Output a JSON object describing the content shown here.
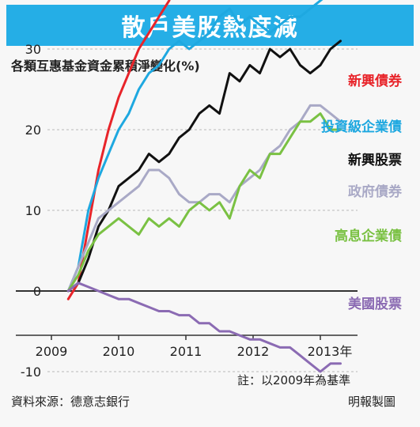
{
  "title": "散戶美股熱度減",
  "subtitle": "各類互惠基金資金累積淨變化(%)",
  "note": "註：以2009年為基準",
  "source": "資料來源：德意志銀行",
  "credit": "明報製圖",
  "chart_data": {
    "type": "line",
    "ylim": [
      -13,
      53
    ],
    "yticks": [
      -10,
      0,
      10,
      20,
      30,
      40,
      50
    ],
    "xlim": [
      2009.0,
      2013.8
    ],
    "xticks": [
      2009,
      2010,
      2011,
      2012,
      2013
    ],
    "xtick_labels": [
      "2009",
      "2010",
      "2011",
      "2012",
      "2013年"
    ],
    "grid": true,
    "legend": "labels at line ends",
    "series": [
      {
        "name": "新興債券",
        "color": "#e8242a",
        "points": [
          [
            2009.25,
            -1
          ],
          [
            2009.4,
            1
          ],
          [
            2009.55,
            8
          ],
          [
            2009.7,
            15
          ],
          [
            2009.85,
            20
          ],
          [
            2010.0,
            24
          ],
          [
            2010.15,
            27
          ],
          [
            2010.3,
            30
          ],
          [
            2010.45,
            32
          ],
          [
            2010.6,
            34
          ],
          [
            2010.75,
            36
          ],
          [
            2010.9,
            39
          ],
          [
            2011.05,
            40
          ],
          [
            2011.2,
            41
          ],
          [
            2011.35,
            42
          ],
          [
            2011.5,
            44
          ],
          [
            2011.65,
            46
          ],
          [
            2011.8,
            47
          ],
          [
            2011.95,
            46
          ],
          [
            2012.1,
            48
          ],
          [
            2012.25,
            46
          ],
          [
            2012.4,
            48
          ],
          [
            2012.55,
            49
          ],
          [
            2012.7,
            49
          ],
          [
            2012.85,
            48
          ],
          [
            2013.0,
            50
          ],
          [
            2013.15,
            51
          ],
          [
            2013.3,
            50
          ]
        ]
      },
      {
        "name": "投資級企業債",
        "color": "#1ea8e0",
        "points": [
          [
            2009.25,
            0
          ],
          [
            2009.4,
            3
          ],
          [
            2009.55,
            10
          ],
          [
            2009.7,
            14
          ],
          [
            2009.85,
            17
          ],
          [
            2010.0,
            20
          ],
          [
            2010.15,
            22
          ],
          [
            2010.3,
            25
          ],
          [
            2010.45,
            27
          ],
          [
            2010.6,
            28
          ],
          [
            2010.75,
            30
          ],
          [
            2010.9,
            31
          ],
          [
            2011.05,
            30
          ],
          [
            2011.2,
            31
          ],
          [
            2011.35,
            32
          ],
          [
            2011.5,
            34
          ],
          [
            2011.65,
            35
          ],
          [
            2011.8,
            33
          ],
          [
            2011.95,
            34
          ],
          [
            2012.1,
            33
          ],
          [
            2012.25,
            32
          ],
          [
            2012.4,
            33
          ],
          [
            2012.55,
            34
          ],
          [
            2012.7,
            34
          ],
          [
            2012.85,
            35
          ],
          [
            2013.0,
            36
          ],
          [
            2013.15,
            37
          ],
          [
            2013.3,
            39
          ]
        ]
      },
      {
        "name": "新興股票",
        "color": "#111111",
        "points": [
          [
            2009.25,
            0
          ],
          [
            2009.4,
            1
          ],
          [
            2009.55,
            4
          ],
          [
            2009.7,
            8
          ],
          [
            2009.85,
            10
          ],
          [
            2010.0,
            13
          ],
          [
            2010.15,
            14
          ],
          [
            2010.3,
            15
          ],
          [
            2010.45,
            17
          ],
          [
            2010.6,
            16
          ],
          [
            2010.75,
            17
          ],
          [
            2010.9,
            19
          ],
          [
            2011.05,
            20
          ],
          [
            2011.2,
            22
          ],
          [
            2011.35,
            23
          ],
          [
            2011.5,
            22
          ],
          [
            2011.65,
            27
          ],
          [
            2011.8,
            26
          ],
          [
            2011.95,
            28
          ],
          [
            2012.1,
            27
          ],
          [
            2012.25,
            30
          ],
          [
            2012.4,
            29
          ],
          [
            2012.55,
            30
          ],
          [
            2012.7,
            28
          ],
          [
            2012.85,
            27
          ],
          [
            2013.0,
            28
          ],
          [
            2013.15,
            30
          ],
          [
            2013.3,
            31
          ]
        ]
      },
      {
        "name": "政府債券",
        "color": "#a9a9c6",
        "points": [
          [
            2009.25,
            0
          ],
          [
            2009.4,
            3
          ],
          [
            2009.55,
            6
          ],
          [
            2009.7,
            9
          ],
          [
            2009.85,
            10
          ],
          [
            2010.0,
            11
          ],
          [
            2010.15,
            12
          ],
          [
            2010.3,
            13
          ],
          [
            2010.45,
            15
          ],
          [
            2010.6,
            15
          ],
          [
            2010.75,
            14
          ],
          [
            2010.9,
            12
          ],
          [
            2011.05,
            11
          ],
          [
            2011.2,
            11
          ],
          [
            2011.35,
            12
          ],
          [
            2011.5,
            12
          ],
          [
            2011.65,
            11
          ],
          [
            2011.8,
            13
          ],
          [
            2011.95,
            14
          ],
          [
            2012.1,
            15
          ],
          [
            2012.25,
            17
          ],
          [
            2012.4,
            18
          ],
          [
            2012.55,
            20
          ],
          [
            2012.7,
            21
          ],
          [
            2012.85,
            23
          ],
          [
            2013.0,
            23
          ],
          [
            2013.15,
            22
          ],
          [
            2013.3,
            21
          ]
        ]
      },
      {
        "name": "高息企業債",
        "color": "#7ac143",
        "points": [
          [
            2009.25,
            0
          ],
          [
            2009.4,
            2
          ],
          [
            2009.55,
            5
          ],
          [
            2009.7,
            7
          ],
          [
            2009.85,
            8
          ],
          [
            2010.0,
            9
          ],
          [
            2010.15,
            8
          ],
          [
            2010.3,
            7
          ],
          [
            2010.45,
            9
          ],
          [
            2010.6,
            8
          ],
          [
            2010.75,
            9
          ],
          [
            2010.9,
            8
          ],
          [
            2011.05,
            10
          ],
          [
            2011.2,
            11
          ],
          [
            2011.35,
            10
          ],
          [
            2011.5,
            11
          ],
          [
            2011.65,
            9
          ],
          [
            2011.8,
            13
          ],
          [
            2011.95,
            15
          ],
          [
            2012.1,
            14
          ],
          [
            2012.25,
            17
          ],
          [
            2012.4,
            17
          ],
          [
            2012.55,
            19
          ],
          [
            2012.7,
            21
          ],
          [
            2012.85,
            21
          ],
          [
            2013.0,
            22
          ],
          [
            2013.15,
            20
          ],
          [
            2013.3,
            20
          ]
        ]
      },
      {
        "name": "美國股票",
        "color": "#8b6bb3",
        "points": [
          [
            2009.25,
            0
          ],
          [
            2009.4,
            1
          ],
          [
            2009.55,
            0.5
          ],
          [
            2009.7,
            0
          ],
          [
            2009.85,
            -0.5
          ],
          [
            2010.0,
            -1
          ],
          [
            2010.15,
            -1
          ],
          [
            2010.3,
            -1.5
          ],
          [
            2010.45,
            -2
          ],
          [
            2010.6,
            -2.5
          ],
          [
            2010.75,
            -2.5
          ],
          [
            2010.9,
            -3
          ],
          [
            2011.05,
            -3
          ],
          [
            2011.2,
            -4
          ],
          [
            2011.35,
            -4
          ],
          [
            2011.5,
            -5
          ],
          [
            2011.65,
            -5
          ],
          [
            2011.8,
            -5.5
          ],
          [
            2011.95,
            -6
          ],
          [
            2012.1,
            -6
          ],
          [
            2012.25,
            -6.5
          ],
          [
            2012.4,
            -7
          ],
          [
            2012.55,
            -7
          ],
          [
            2012.7,
            -8
          ],
          [
            2012.85,
            -9
          ],
          [
            2013.0,
            -10
          ],
          [
            2013.15,
            -9
          ],
          [
            2013.3,
            -9
          ]
        ]
      }
    ]
  }
}
